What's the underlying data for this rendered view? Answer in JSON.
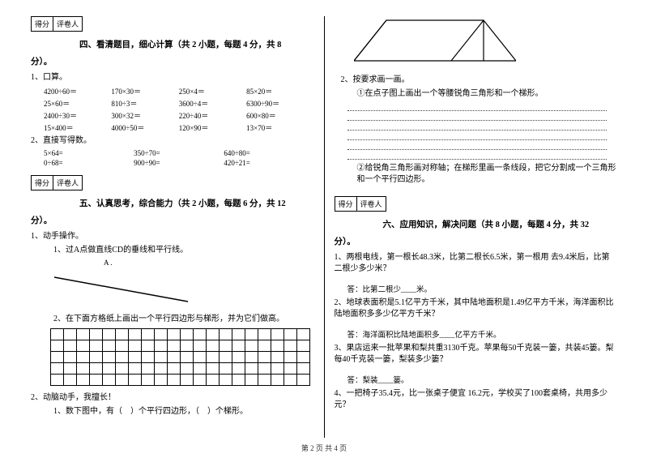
{
  "scorebox": {
    "label1": "得分",
    "label2": "评卷人"
  },
  "section4": {
    "title": "四、看清题目，细心计算（共 2 小题，每题 4 分，共 8",
    "tail": "分）。",
    "q1_label": "1、口算。",
    "rows": [
      [
        "4200÷60＝",
        "170×30＝",
        "250×4＝",
        "85×20＝"
      ],
      [
        "25×60＝",
        "810÷3＝",
        "3600÷4＝",
        "6300÷90＝"
      ],
      [
        "2400÷30＝",
        "300×32＝",
        "220÷40＝",
        "600×80＝"
      ],
      [
        "15×400＝",
        "4000÷50＝",
        "120×90＝",
        "13×70＝"
      ]
    ],
    "q2_label": "2、直接写得数。",
    "rows2": [
      [
        "5×64=",
        "350÷70=",
        "640÷80="
      ],
      [
        "0÷68=",
        "900÷90=",
        "420÷21="
      ]
    ]
  },
  "section5": {
    "title": "五、认真思考，综合能力（共 2 小题，每题 6 分，共 12",
    "tail": "分）。",
    "q1_label": "1、动手操作。",
    "q1_sub1": "1、过A点做直线CD的垂线和平行线。",
    "pointA": "A .",
    "q1_sub2": "2、在下面方格纸上画出一个平行四边形与梯形，并为它们做高。",
    "grid": {
      "rows": 5,
      "cols": 20
    },
    "q2_label": "2、动脑动手，我擅长！",
    "q2_sub1": "1、数下图中，有（　）个平行四边形，（　）个梯形。"
  },
  "right_shape": {
    "note": "parallelogram-triangle composite"
  },
  "section5b": {
    "q2_label": "2、按要求画一画。",
    "sub1": "①在点子图上画出一个等腰锐角三角形和一个梯形。",
    "sub2": "②给锐角三角形画对称轴；在梯形里画一条线段，把它分割成一个三角形和一个平行四边形。"
  },
  "section6": {
    "title": "六、应用知识，解决问题（共 8 小题，每题 4 分，共 32",
    "tail": "分）。",
    "q1": "1、两根电线，第一根长48.3米，比第二根长6.5米，第一根用 去9.4米后，比第二根少多少米？",
    "a1": "答：比第二根少____米。",
    "q2": "2、地球表面积是5.1亿平方千米，其中陆地面积是1.49亿平方千米，海洋面积比陆地面积多多少亿平方千米？",
    "a2": "答：海洋面积比陆地面积多____亿平方千米。",
    "q3": "3、果店运来一批苹果和梨共重3130千克。苹果每50千克装一篓，共装45篓。梨每40千克装一篓，梨装多少篓？",
    "a3": "答：梨装____篓。",
    "q4": "4、一把椅子35.4元，比一张桌子便宜 16.2元，学校买了100套桌椅，共用多少元？"
  },
  "footer": "第 2 页 共 4 页"
}
